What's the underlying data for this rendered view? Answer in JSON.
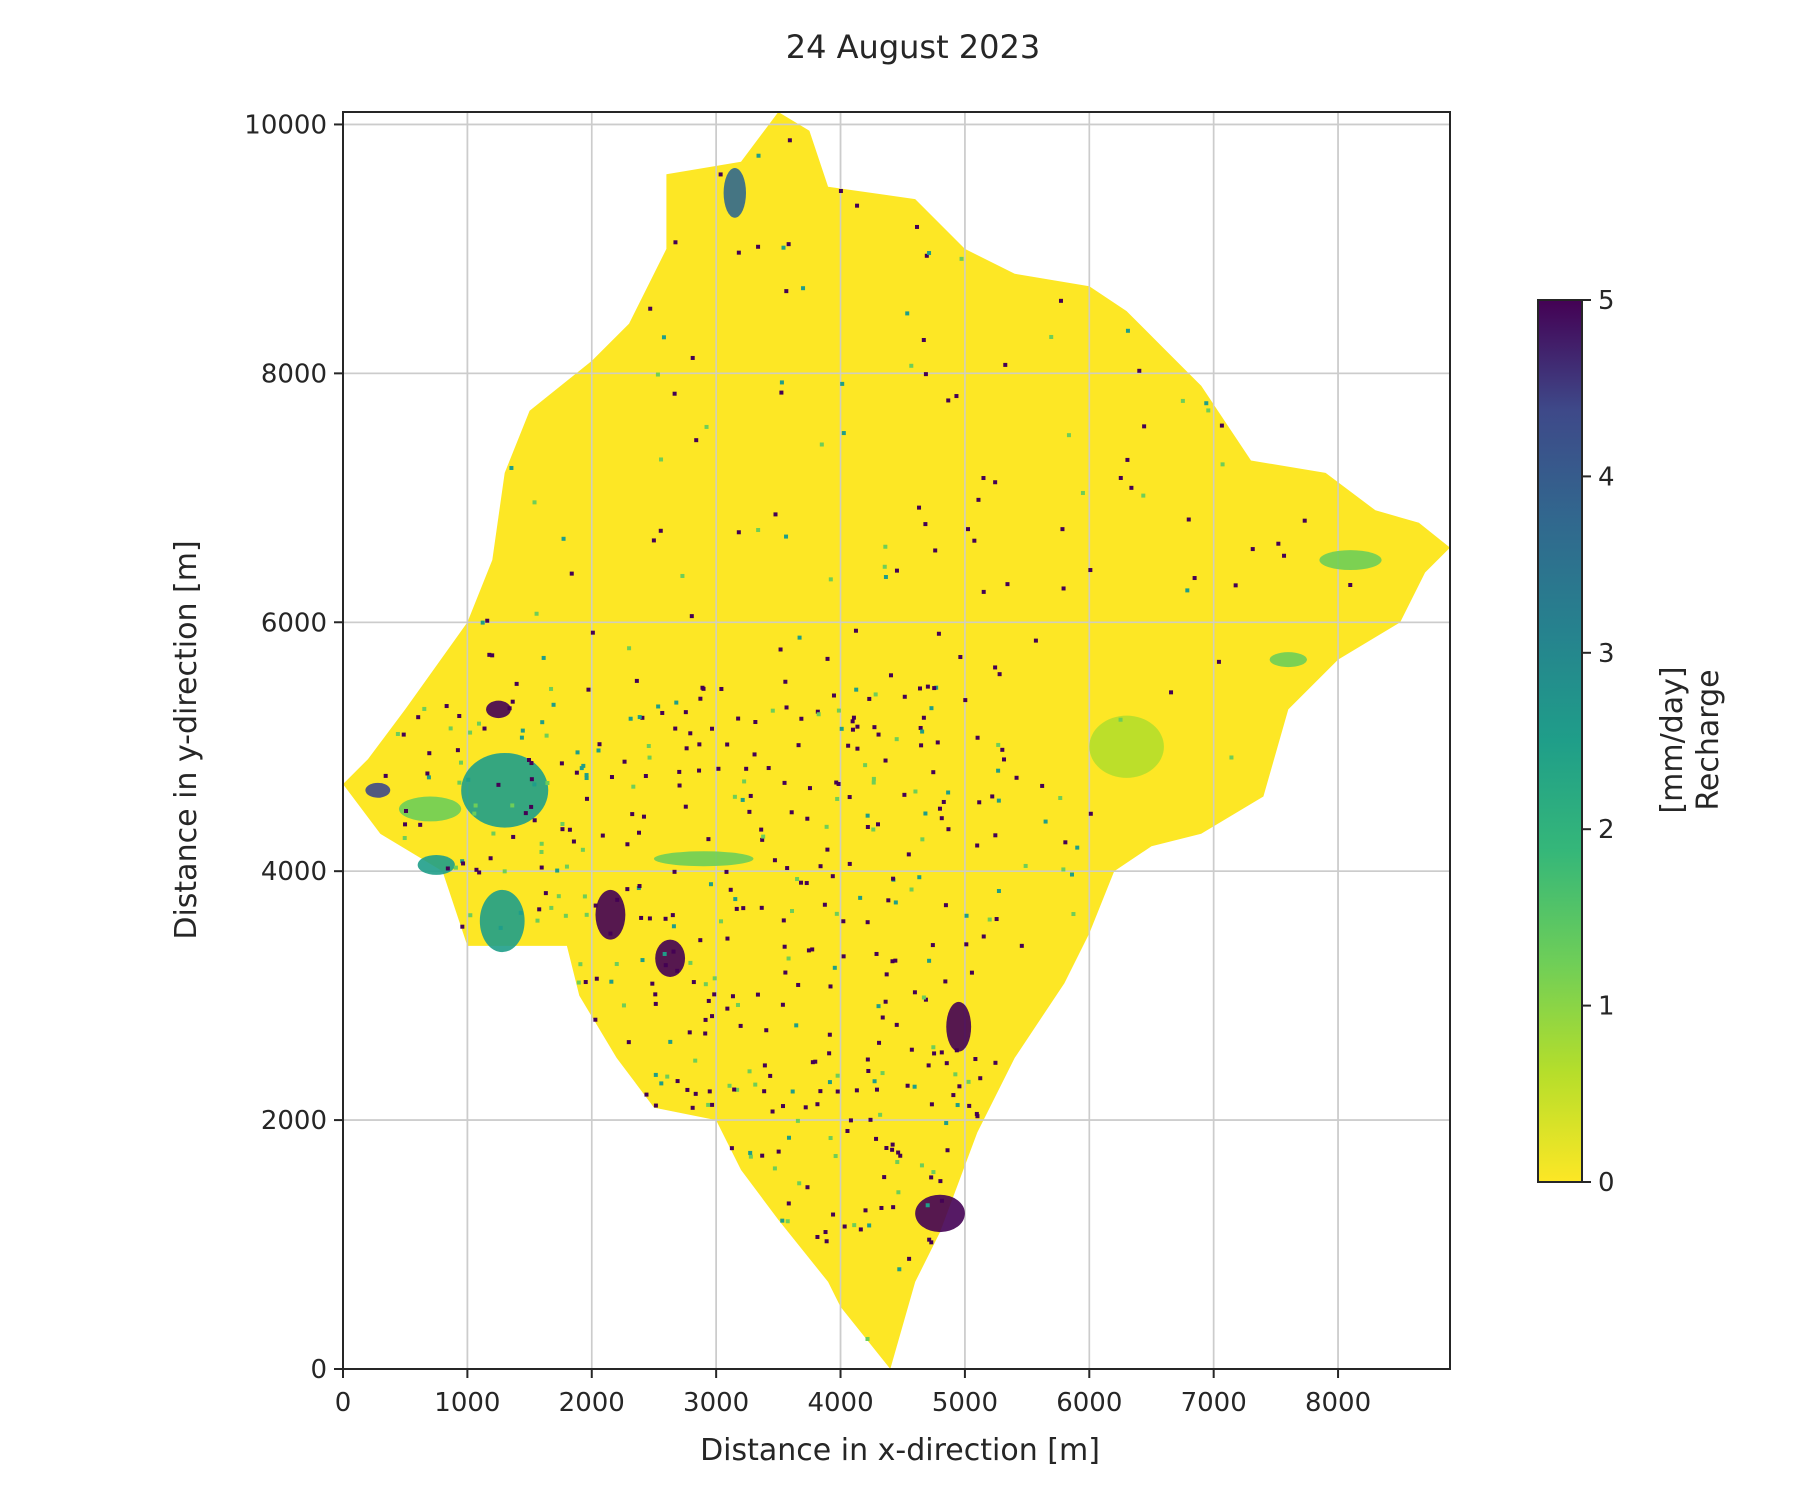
{
  "chart_data": {
    "type": "heatmap",
    "title": "24 August 2023",
    "xlabel": "Distance in x-direction [m]",
    "ylabel": "Distance in y-direction [m]",
    "xlim": [
      0,
      8900
    ],
    "ylim": [
      0,
      10100
    ],
    "xticks": [
      0,
      1000,
      2000,
      3000,
      4000,
      5000,
      6000,
      7000,
      8000
    ],
    "yticks": [
      0,
      2000,
      4000,
      6000,
      8000,
      10000
    ],
    "grid": true,
    "colormap": "viridis_r",
    "colorbar": {
      "label_line1": "Recharge",
      "label_line2": "[mm/day]",
      "min": 0,
      "max": 5,
      "ticks": [
        0,
        1,
        2,
        3,
        4,
        5
      ]
    },
    "colors": {
      "background_value": "#fde725",
      "low": "#b5de2b",
      "mid": "#21918c",
      "high": "#3b528b",
      "max": "#440154",
      "grid": "#cccccc",
      "axes": "#262626"
    },
    "domain_outline": [
      [
        0,
        4700
      ],
      [
        200,
        4900
      ],
      [
        500,
        5300
      ],
      [
        1000,
        6000
      ],
      [
        1200,
        6500
      ],
      [
        1300,
        7200
      ],
      [
        1500,
        7700
      ],
      [
        2000,
        8100
      ],
      [
        2300,
        8400
      ],
      [
        2600,
        9000
      ],
      [
        2600,
        9600
      ],
      [
        3200,
        9700
      ],
      [
        3500,
        10100
      ],
      [
        3750,
        9950
      ],
      [
        3900,
        9500
      ],
      [
        4600,
        9400
      ],
      [
        5000,
        9000
      ],
      [
        5400,
        8800
      ],
      [
        6000,
        8700
      ],
      [
        6300,
        8500
      ],
      [
        6600,
        8200
      ],
      [
        6900,
        7900
      ],
      [
        7300,
        7300
      ],
      [
        7900,
        7200
      ],
      [
        8300,
        6900
      ],
      [
        8650,
        6800
      ],
      [
        8900,
        6600
      ],
      [
        8700,
        6400
      ],
      [
        8500,
        6000
      ],
      [
        8000,
        5700
      ],
      [
        7600,
        5300
      ],
      [
        7400,
        4600
      ],
      [
        6900,
        4300
      ],
      [
        6500,
        4200
      ],
      [
        6200,
        4000
      ],
      [
        6000,
        3500
      ],
      [
        5800,
        3100
      ],
      [
        5400,
        2500
      ],
      [
        5100,
        1900
      ],
      [
        4800,
        1100
      ],
      [
        4600,
        700
      ],
      [
        4400,
        0
      ],
      [
        4000,
        500
      ],
      [
        3900,
        700
      ],
      [
        3500,
        1200
      ],
      [
        3200,
        1600
      ],
      [
        3000,
        2000
      ],
      [
        2500,
        2100
      ],
      [
        2200,
        2500
      ],
      [
        1900,
        3000
      ],
      [
        1800,
        3400
      ],
      [
        1000,
        3400
      ],
      [
        800,
        4000
      ],
      [
        300,
        4300
      ],
      [
        0,
        4700
      ]
    ],
    "features": [
      {
        "x": 1300,
        "y": 4650,
        "rx": 350,
        "ry": 300,
        "value": 2.6
      },
      {
        "x": 1280,
        "y": 3600,
        "rx": 180,
        "ry": 250,
        "value": 2.8
      },
      {
        "x": 750,
        "y": 4050,
        "rx": 150,
        "ry": 80,
        "value": 2.4
      },
      {
        "x": 2150,
        "y": 3650,
        "rx": 120,
        "ry": 200,
        "value": 5
      },
      {
        "x": 2630,
        "y": 3300,
        "rx": 120,
        "ry": 150,
        "value": 5
      },
      {
        "x": 4950,
        "y": 2750,
        "rx": 100,
        "ry": 200,
        "value": 5
      },
      {
        "x": 4800,
        "y": 1250,
        "rx": 200,
        "ry": 150,
        "value": 5
      },
      {
        "x": 3150,
        "y": 9450,
        "rx": 90,
        "ry": 200,
        "value": 4
      },
      {
        "x": 1250,
        "y": 5300,
        "rx": 100,
        "ry": 70,
        "value": 5
      },
      {
        "x": 280,
        "y": 4650,
        "rx": 100,
        "ry": 60,
        "value": 4.2
      },
      {
        "x": 2900,
        "y": 4100,
        "rx": 400,
        "ry": 60,
        "value": 1.2
      },
      {
        "x": 700,
        "y": 4500,
        "rx": 250,
        "ry": 100,
        "value": 1.0
      },
      {
        "x": 6300,
        "y": 5000,
        "rx": 300,
        "ry": 250,
        "value": 0.8
      },
      {
        "x": 8100,
        "y": 6500,
        "rx": 250,
        "ry": 80,
        "value": 1.5
      },
      {
        "x": 7600,
        "y": 5700,
        "rx": 150,
        "ry": 60,
        "value": 1.3
      }
    ]
  }
}
